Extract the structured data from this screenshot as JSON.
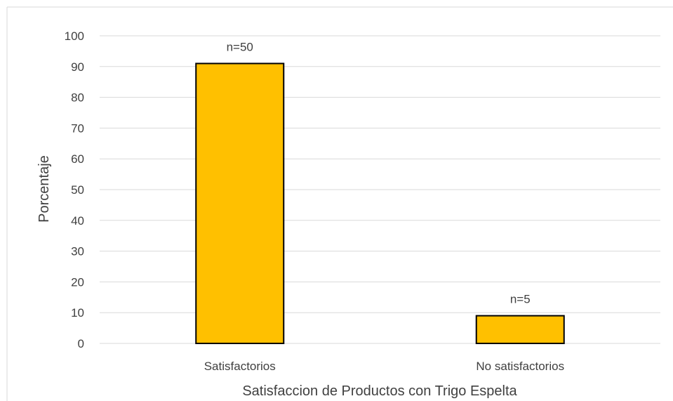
{
  "chart_data": {
    "type": "bar",
    "categories": [
      "Satisfactorios",
      "No satisfactorios"
    ],
    "values": [
      91,
      9
    ],
    "data_labels": [
      "n=50",
      "n=5"
    ],
    "title": "",
    "xlabel": "Satisfaccion de Productos con Trigo Espelta",
    "ylabel": "Porcentaje",
    "ylim": [
      0,
      100
    ],
    "yticks": [
      "0",
      "10",
      "20",
      "30",
      "40",
      "50",
      "60",
      "70",
      "80",
      "90",
      "100"
    ],
    "grid": true,
    "legend": "none",
    "bar_color": "#FFC000",
    "bar_outline_color": "#000000",
    "gridline_color": "#D9D9D9",
    "text_color": "#404040"
  }
}
